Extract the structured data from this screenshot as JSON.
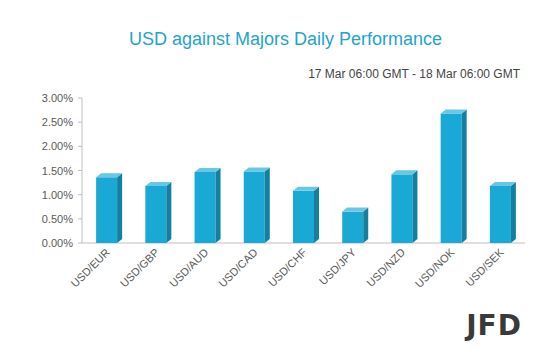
{
  "chart_data": {
    "type": "bar",
    "title": "USD against Majors Daily Performance",
    "subtitle": "17 Mar 06:00 GMT - 18 Mar 06:00 GMT",
    "categories": [
      "USD/EUR",
      "USD/GBP",
      "USD/AUD",
      "USD/CAD",
      "USD/CHF",
      "USD/JPY",
      "USD/NZD",
      "USD/NOK",
      "USD/SEK"
    ],
    "values": [
      1.36,
      1.18,
      1.47,
      1.48,
      1.08,
      0.65,
      1.42,
      2.68,
      1.18
    ],
    "color": "#1aa9d4",
    "ylim": [
      0,
      3
    ],
    "yticks": [
      {
        "value": 0,
        "label": "0.00%"
      },
      {
        "value": 0.5,
        "label": "0.50%"
      },
      {
        "value": 1,
        "label": "1.00%"
      },
      {
        "value": 1.5,
        "label": "1.50%"
      },
      {
        "value": 2,
        "label": "2.00%"
      },
      {
        "value": 2.5,
        "label": "2.50%"
      },
      {
        "value": 3,
        "label": "3.00%"
      }
    ],
    "grid": false,
    "annotations": [
      "JFD"
    ]
  }
}
